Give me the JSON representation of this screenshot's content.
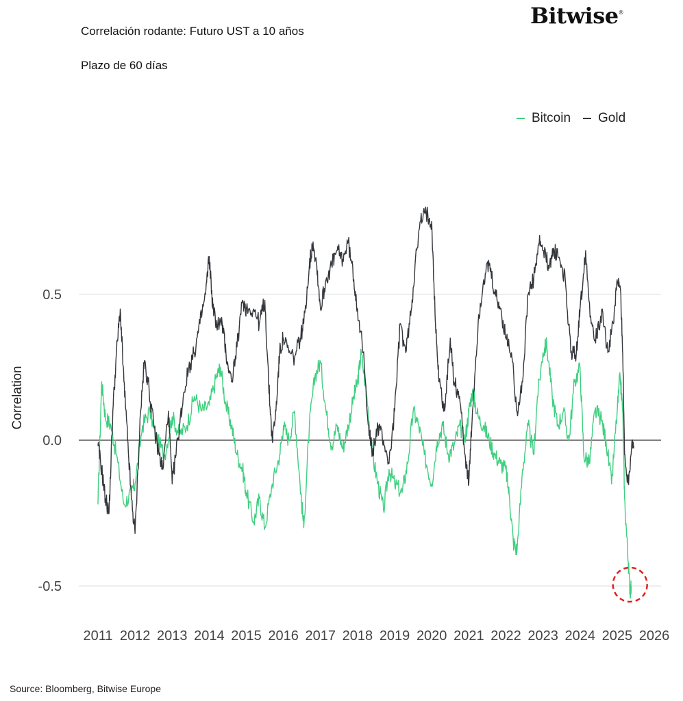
{
  "header": {
    "title": "Correlación rodante: Futuro UST a 10 años",
    "subtitle": "Plazo de 60 días",
    "logo": "Bitwise"
  },
  "footer": {
    "source": "Source: Bloomberg, Bitwise Europe"
  },
  "chart_data": {
    "type": "line",
    "title": "Correlación rodante: Futuro UST a 10 años",
    "subtitle": "Plazo de 60 días",
    "xlabel": "",
    "ylabel": "Correlation",
    "xlim": [
      2011,
      2026
    ],
    "ylim": [
      -0.6,
      0.85
    ],
    "x_ticks": [
      "2011",
      "2012",
      "2013",
      "2014",
      "2015",
      "2016",
      "2017",
      "2018",
      "2019",
      "2020",
      "2021",
      "2022",
      "2023",
      "2024",
      "2025",
      "2026"
    ],
    "y_ticks": [
      {
        "value": 0.5,
        "label": "0.5"
      },
      {
        "value": 0.0,
        "label": "0.0"
      },
      {
        "value": -0.5,
        "label": "-0.5"
      }
    ],
    "grid": "horizontal",
    "legend_position": "top-right",
    "annotation": {
      "type": "dashed-circle",
      "x": 2025.2,
      "y": -0.5,
      "color": "#e02020"
    },
    "series": [
      {
        "name": "Bitcoin",
        "color": "#3fcf80",
        "points": [
          [
            2011.0,
            -0.22
          ],
          [
            2011.1,
            0.2
          ],
          [
            2011.2,
            0.08
          ],
          [
            2011.35,
            0.05
          ],
          [
            2011.5,
            -0.05
          ],
          [
            2011.7,
            -0.22
          ],
          [
            2011.9,
            -0.18
          ],
          [
            2012.0,
            -0.15
          ],
          [
            2012.2,
            0.05
          ],
          [
            2012.4,
            0.1
          ],
          [
            2012.6,
            0.0
          ],
          [
            2012.8,
            -0.05
          ],
          [
            2013.0,
            0.08
          ],
          [
            2013.2,
            0.02
          ],
          [
            2013.4,
            0.05
          ],
          [
            2013.6,
            0.15
          ],
          [
            2013.8,
            0.1
          ],
          [
            2014.0,
            0.12
          ],
          [
            2014.2,
            0.22
          ],
          [
            2014.3,
            0.25
          ],
          [
            2014.45,
            0.12
          ],
          [
            2014.6,
            0.05
          ],
          [
            2014.75,
            -0.05
          ],
          [
            2014.9,
            -0.1
          ],
          [
            2015.0,
            -0.18
          ],
          [
            2015.2,
            -0.28
          ],
          [
            2015.35,
            -0.2
          ],
          [
            2015.5,
            -0.3
          ],
          [
            2015.7,
            -0.15
          ],
          [
            2015.9,
            -0.05
          ],
          [
            2016.0,
            0.05
          ],
          [
            2016.15,
            0.0
          ],
          [
            2016.3,
            0.1
          ],
          [
            2016.45,
            -0.15
          ],
          [
            2016.55,
            -0.3
          ],
          [
            2016.7,
            0.05
          ],
          [
            2016.85,
            0.22
          ],
          [
            2017.0,
            0.27
          ],
          [
            2017.15,
            0.1
          ],
          [
            2017.3,
            -0.02
          ],
          [
            2017.45,
            0.05
          ],
          [
            2017.6,
            -0.03
          ],
          [
            2017.75,
            0.05
          ],
          [
            2017.9,
            0.15
          ],
          [
            2018.0,
            0.2
          ],
          [
            2018.1,
            0.3
          ],
          [
            2018.25,
            0.15
          ],
          [
            2018.4,
            -0.05
          ],
          [
            2018.55,
            -0.15
          ],
          [
            2018.7,
            -0.24
          ],
          [
            2018.85,
            -0.1
          ],
          [
            2019.0,
            -0.15
          ],
          [
            2019.2,
            -0.18
          ],
          [
            2019.35,
            -0.08
          ],
          [
            2019.5,
            0.1
          ],
          [
            2019.65,
            0.05
          ],
          [
            2019.8,
            -0.05
          ],
          [
            2020.0,
            -0.15
          ],
          [
            2020.15,
            0.0
          ],
          [
            2020.3,
            0.05
          ],
          [
            2020.45,
            -0.05
          ],
          [
            2020.6,
            -0.02
          ],
          [
            2020.75,
            0.05
          ],
          [
            2020.9,
            0.0
          ],
          [
            2021.0,
            0.1
          ],
          [
            2021.1,
            0.17
          ],
          [
            2021.25,
            0.08
          ],
          [
            2021.4,
            0.05
          ],
          [
            2021.55,
            0.0
          ],
          [
            2021.7,
            -0.05
          ],
          [
            2021.85,
            -0.08
          ],
          [
            2022.0,
            -0.1
          ],
          [
            2022.1,
            -0.2
          ],
          [
            2022.2,
            -0.35
          ],
          [
            2022.3,
            -0.38
          ],
          [
            2022.45,
            -0.1
          ],
          [
            2022.6,
            0.05
          ],
          [
            2022.75,
            -0.05
          ],
          [
            2022.85,
            0.15
          ],
          [
            2023.0,
            0.3
          ],
          [
            2023.1,
            0.33
          ],
          [
            2023.25,
            0.15
          ],
          [
            2023.4,
            0.05
          ],
          [
            2023.55,
            0.1
          ],
          [
            2023.7,
            0.0
          ],
          [
            2023.85,
            0.2
          ],
          [
            2024.0,
            0.25
          ],
          [
            2024.1,
            -0.05
          ],
          [
            2024.25,
            -0.08
          ],
          [
            2024.4,
            0.1
          ],
          [
            2024.55,
            0.08
          ],
          [
            2024.7,
            0.0
          ],
          [
            2024.85,
            -0.15
          ],
          [
            2025.0,
            0.1
          ],
          [
            2025.08,
            0.22
          ],
          [
            2025.15,
            0.1
          ],
          [
            2025.2,
            -0.2
          ],
          [
            2025.3,
            -0.42
          ],
          [
            2025.35,
            -0.52
          ],
          [
            2025.38,
            -0.5
          ]
        ]
      },
      {
        "name": "Gold",
        "color": "#33363b",
        "points": [
          [
            2011.0,
            -0.02
          ],
          [
            2011.1,
            -0.1
          ],
          [
            2011.2,
            -0.2
          ],
          [
            2011.3,
            -0.25
          ],
          [
            2011.4,
            0.1
          ],
          [
            2011.5,
            0.3
          ],
          [
            2011.6,
            0.45
          ],
          [
            2011.7,
            0.2
          ],
          [
            2011.8,
            0.0
          ],
          [
            2011.9,
            -0.2
          ],
          [
            2012.0,
            -0.32
          ],
          [
            2012.15,
            0.1
          ],
          [
            2012.25,
            0.27
          ],
          [
            2012.35,
            0.2
          ],
          [
            2012.5,
            0.05
          ],
          [
            2012.65,
            -0.05
          ],
          [
            2012.75,
            -0.1
          ],
          [
            2012.9,
            0.1
          ],
          [
            2013.0,
            -0.15
          ],
          [
            2013.15,
            0.0
          ],
          [
            2013.3,
            0.15
          ],
          [
            2013.45,
            0.25
          ],
          [
            2013.6,
            0.3
          ],
          [
            2013.75,
            0.4
          ],
          [
            2013.9,
            0.5
          ],
          [
            2014.0,
            0.63
          ],
          [
            2014.1,
            0.45
          ],
          [
            2014.2,
            0.4
          ],
          [
            2014.35,
            0.4
          ],
          [
            2014.45,
            0.3
          ],
          [
            2014.6,
            0.2
          ],
          [
            2014.75,
            0.32
          ],
          [
            2014.9,
            0.48
          ],
          [
            2015.0,
            0.45
          ],
          [
            2015.2,
            0.45
          ],
          [
            2015.35,
            0.4
          ],
          [
            2015.5,
            0.48
          ],
          [
            2015.6,
            0.2
          ],
          [
            2015.7,
            0.0
          ],
          [
            2015.8,
            0.1
          ],
          [
            2015.9,
            0.3
          ],
          [
            2016.0,
            0.35
          ],
          [
            2016.15,
            0.3
          ],
          [
            2016.3,
            0.28
          ],
          [
            2016.45,
            0.35
          ],
          [
            2016.55,
            0.4
          ],
          [
            2016.7,
            0.6
          ],
          [
            2016.8,
            0.68
          ],
          [
            2016.9,
            0.6
          ],
          [
            2017.0,
            0.45
          ],
          [
            2017.15,
            0.55
          ],
          [
            2017.3,
            0.6
          ],
          [
            2017.45,
            0.65
          ],
          [
            2017.6,
            0.62
          ],
          [
            2017.75,
            0.68
          ],
          [
            2017.9,
            0.55
          ],
          [
            2018.0,
            0.45
          ],
          [
            2018.15,
            0.3
          ],
          [
            2018.3,
            0.05
          ],
          [
            2018.4,
            -0.05
          ],
          [
            2018.55,
            0.05
          ],
          [
            2018.7,
            0.0
          ],
          [
            2018.85,
            -0.08
          ],
          [
            2019.0,
            0.1
          ],
          [
            2019.15,
            0.4
          ],
          [
            2019.3,
            0.3
          ],
          [
            2019.45,
            0.45
          ],
          [
            2019.55,
            0.6
          ],
          [
            2019.7,
            0.75
          ],
          [
            2019.85,
            0.78
          ],
          [
            2020.0,
            0.75
          ],
          [
            2020.1,
            0.4
          ],
          [
            2020.2,
            0.2
          ],
          [
            2020.35,
            0.1
          ],
          [
            2020.5,
            0.35
          ],
          [
            2020.6,
            0.2
          ],
          [
            2020.75,
            0.15
          ],
          [
            2020.9,
            -0.05
          ],
          [
            2021.0,
            -0.15
          ],
          [
            2021.1,
            0.1
          ],
          [
            2021.25,
            0.4
          ],
          [
            2021.4,
            0.55
          ],
          [
            2021.55,
            0.6
          ],
          [
            2021.7,
            0.5
          ],
          [
            2021.85,
            0.45
          ],
          [
            2022.0,
            0.35
          ],
          [
            2022.15,
            0.3
          ],
          [
            2022.3,
            0.1
          ],
          [
            2022.45,
            0.2
          ],
          [
            2022.6,
            0.5
          ],
          [
            2022.75,
            0.55
          ],
          [
            2022.9,
            0.68
          ],
          [
            2023.0,
            0.65
          ],
          [
            2023.15,
            0.6
          ],
          [
            2023.3,
            0.65
          ],
          [
            2023.45,
            0.62
          ],
          [
            2023.6,
            0.55
          ],
          [
            2023.75,
            0.3
          ],
          [
            2023.9,
            0.3
          ],
          [
            2024.0,
            0.45
          ],
          [
            2024.15,
            0.65
          ],
          [
            2024.3,
            0.4
          ],
          [
            2024.45,
            0.35
          ],
          [
            2024.6,
            0.45
          ],
          [
            2024.75,
            0.3
          ],
          [
            2024.9,
            0.4
          ],
          [
            2025.0,
            0.55
          ],
          [
            2025.1,
            0.5
          ],
          [
            2025.15,
            0.3
          ],
          [
            2025.2,
            -0.05
          ],
          [
            2025.3,
            -0.15
          ],
          [
            2025.4,
            0.0
          ],
          [
            2025.45,
            -0.02
          ]
        ]
      }
    ]
  }
}
